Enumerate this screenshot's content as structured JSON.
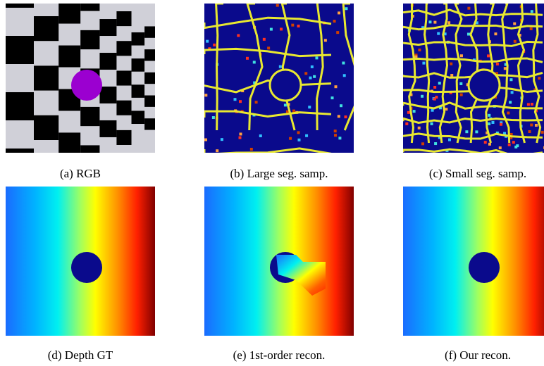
{
  "figures": [
    {
      "caption": "(a) RGB"
    },
    {
      "caption": "(b) Large seg. samp."
    },
    {
      "caption": "(c) Small seg. samp."
    },
    {
      "caption": "(d) Depth GT"
    },
    {
      "caption": "(e) 1st-order recon."
    },
    {
      "caption": "(f) Our recon."
    }
  ]
}
